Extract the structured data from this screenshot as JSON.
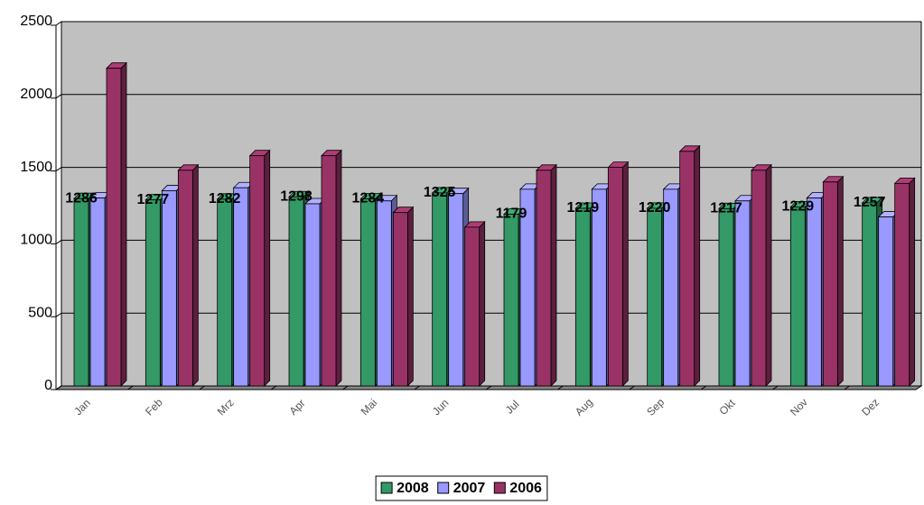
{
  "chart_data": {
    "type": "bar3d",
    "categories": [
      "Jan",
      "Feb",
      "Mrz",
      "Apr",
      "Mai",
      "Jun",
      "Jul",
      "Aug",
      "Sep",
      "Okt",
      "Nov",
      "Dez"
    ],
    "series": [
      {
        "name": "2008",
        "color": "#339966",
        "show_labels": true,
        "values": [
          1286,
          1277,
          1282,
          1298,
          1284,
          1325,
          1179,
          1219,
          1220,
          1217,
          1229,
          1257
        ]
      },
      {
        "name": "2007",
        "color": "#9999ff",
        "show_labels": false,
        "values": [
          1290,
          1340,
          1360,
          1250,
          1270,
          1320,
          1350,
          1350,
          1350,
          1270,
          1290,
          1160
        ]
      },
      {
        "name": "2006",
        "color": "#993366",
        "show_labels": false,
        "values": [
          2180,
          1480,
          1580,
          1580,
          1190,
          1090,
          1480,
          1500,
          1610,
          1480,
          1400,
          1390
        ]
      }
    ],
    "ylim": [
      0,
      2500
    ],
    "yticks": [
      0,
      500,
      1000,
      1500,
      2000,
      2500
    ],
    "grid": true,
    "plot_background": "#c0c0c0",
    "legend": "bottom"
  }
}
